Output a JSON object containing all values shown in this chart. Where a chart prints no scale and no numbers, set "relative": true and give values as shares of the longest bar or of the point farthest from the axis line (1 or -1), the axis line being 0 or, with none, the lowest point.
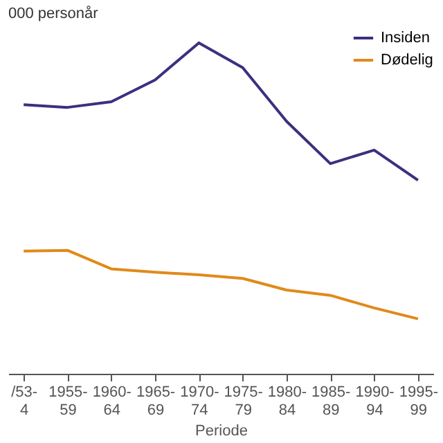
{
  "chart_data": {
    "type": "line",
    "title": "000 personår",
    "xlabel": "Periode",
    "relative": true,
    "legend": "top right",
    "grid": false,
    "marker": "none",
    "line_style": "solid",
    "categories": [
      "/53-4",
      "1955-59",
      "1960-64",
      "1965-69",
      "1970-74",
      "1975-79",
      "1980-84",
      "1985-89",
      "1990-94",
      "1995-99"
    ],
    "series": [
      {
        "name": "Insiden",
        "color": "#3d2f7f",
        "values": [
          0.813,
          0.805,
          0.822,
          0.888,
          1,
          0.925,
          0.763,
          0.635,
          0.676,
          0.585
        ]
      },
      {
        "name": "Dødelig",
        "color": "#e08a1a",
        "values": [
          0.371,
          0.373,
          0.317,
          0.307,
          0.299,
          0.288,
          0.253,
          0.237,
          0.199,
          0.166
        ]
      }
    ]
  }
}
